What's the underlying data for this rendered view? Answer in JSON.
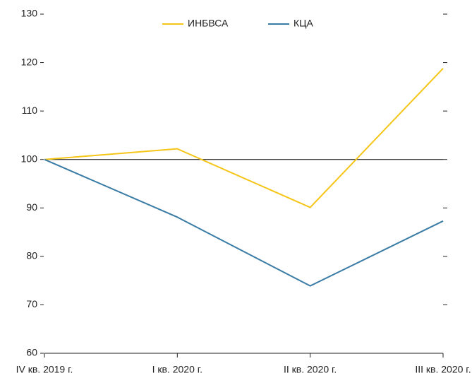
{
  "chart_data": {
    "type": "line",
    "categories": [
      "IV кв. 2019 г.",
      "I кв. 2020 г.",
      "II кв. 2020 г.",
      "III кв. 2020 г."
    ],
    "series": [
      {
        "name": "ИНБВСА",
        "color": "#f5c518",
        "values": [
          100,
          102.2,
          90.1,
          118.8
        ]
      },
      {
        "name": "КЦА",
        "color": "#3a7ca5",
        "values": [
          100,
          88.1,
          73.9,
          87.3
        ]
      }
    ],
    "ylim": [
      60,
      130
    ],
    "yticks": [
      60,
      70,
      80,
      90,
      100,
      110,
      120,
      130
    ],
    "reference_line": 100,
    "legend": "top"
  }
}
